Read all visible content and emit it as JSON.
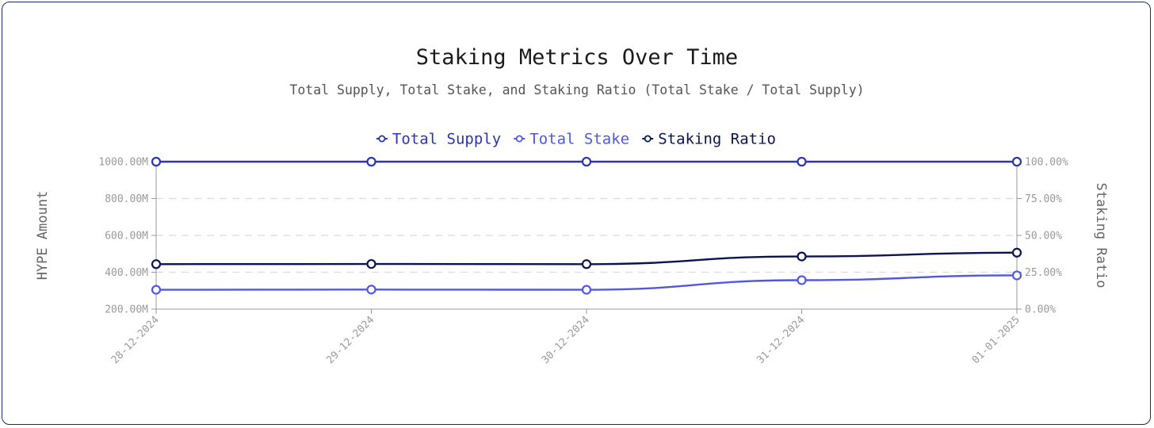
{
  "chart_data": {
    "type": "line",
    "title": "Staking Metrics Over Time",
    "subtitle": "Total Supply, Total Stake, and Staking Ratio (Total Stake / Total Supply)",
    "categories": [
      "28-12-2024",
      "29-12-2024",
      "30-12-2024",
      "31-12-2024",
      "01-01-2025"
    ],
    "series": [
      {
        "name": "Total Supply",
        "axis": "left",
        "color": "#2e35a8",
        "values": [
          1000.0,
          1000.0,
          1000.0,
          1000.0,
          1000.0
        ]
      },
      {
        "name": "Total Stake",
        "axis": "left",
        "color": "#5058e0",
        "values": [
          305.0,
          306.0,
          305.0,
          357.0,
          383.0
        ]
      },
      {
        "name": "Staking Ratio",
        "axis": "right",
        "color": "#0a1450",
        "values": [
          30.5,
          30.6,
          30.5,
          35.7,
          38.3
        ]
      }
    ],
    "y_left": {
      "label": "HYPE Amount",
      "min": 200,
      "max": 1000,
      "ticks": [
        "200.00M",
        "400.00M",
        "600.00M",
        "800.00M",
        "1000.00M"
      ]
    },
    "y_right": {
      "label": "Staking Ratio",
      "min": 0,
      "max": 100,
      "ticks": [
        "0.00%",
        "25.00%",
        "50.00%",
        "75.00%",
        "100.00%"
      ]
    },
    "grid": true,
    "legend_position": "top-center"
  }
}
